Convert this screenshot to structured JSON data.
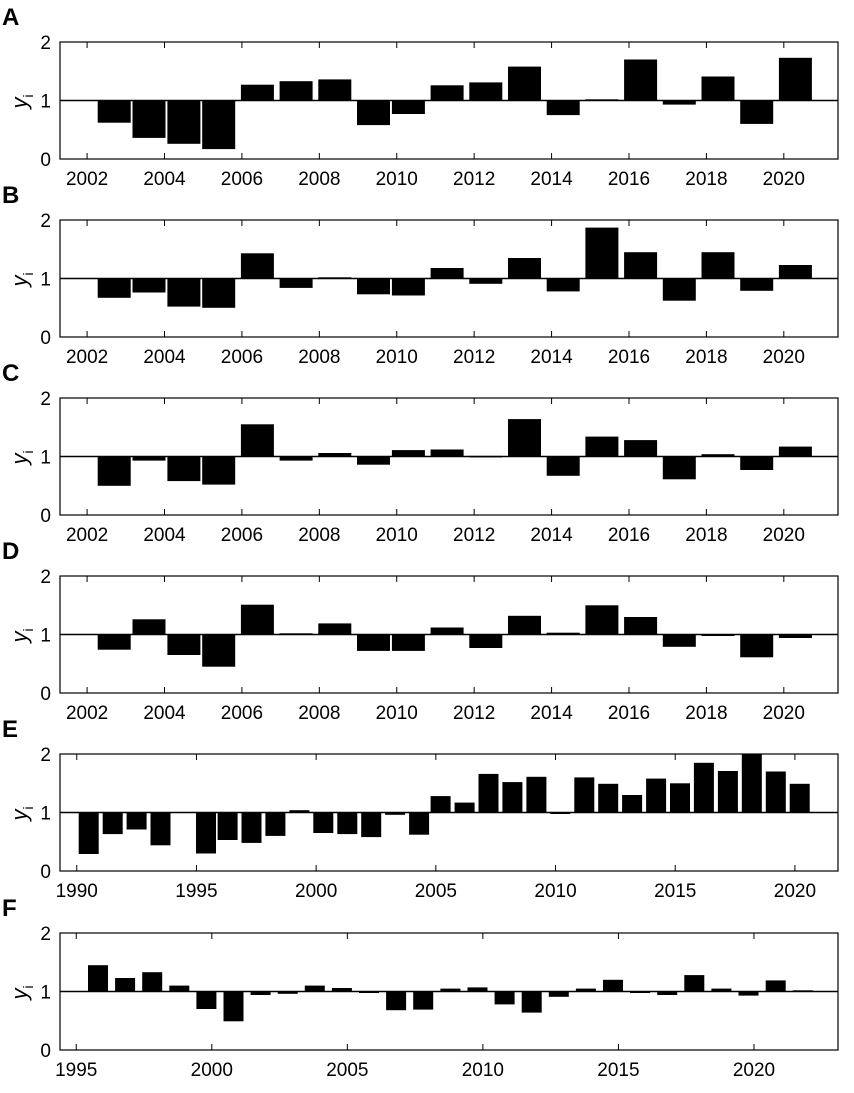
{
  "chart_data": [
    {
      "type": "bar",
      "panel_label": "A",
      "ylabel": "y",
      "ylabel_subscript": "i",
      "baseline": 1,
      "ylim": [
        0,
        2
      ],
      "yticks": [
        "0",
        "1",
        "2"
      ],
      "xlim": [
        2001.3,
        2021.4
      ],
      "xticks": [
        "2002",
        "2004",
        "2006",
        "2008",
        "2010",
        "2012",
        "2014",
        "2016",
        "2018",
        "2020"
      ],
      "x": [
        2002.7,
        2003.6,
        2004.5,
        2005.4,
        2006.4,
        2007.4,
        2008.4,
        2009.4,
        2010.3,
        2011.3,
        2012.3,
        2013.3,
        2014.3,
        2015.3,
        2016.3,
        2017.3,
        2018.3,
        2019.3,
        2020.3
      ],
      "values": [
        0.62,
        0.36,
        0.26,
        0.17,
        1.27,
        1.33,
        1.36,
        0.58,
        0.77,
        1.26,
        1.31,
        1.58,
        0.75,
        1.02,
        1.7,
        0.93,
        1.41,
        0.6,
        1.73
      ]
    },
    {
      "type": "bar",
      "panel_label": "B",
      "ylabel": "y",
      "ylabel_subscript": "i",
      "baseline": 1,
      "ylim": [
        0,
        2
      ],
      "yticks": [
        "0",
        "1",
        "2"
      ],
      "xlim": [
        2001.3,
        2021.4
      ],
      "xticks": [
        "2002",
        "2004",
        "2006",
        "2008",
        "2010",
        "2012",
        "2014",
        "2016",
        "2018",
        "2020"
      ],
      "x": [
        2002.7,
        2003.6,
        2004.5,
        2005.4,
        2006.4,
        2007.4,
        2008.4,
        2009.4,
        2010.3,
        2011.3,
        2012.3,
        2013.3,
        2014.3,
        2015.3,
        2016.3,
        2017.3,
        2018.3,
        2019.3,
        2020.3
      ],
      "values": [
        0.67,
        0.76,
        0.52,
        0.5,
        1.43,
        0.84,
        1.02,
        0.73,
        0.71,
        1.18,
        0.91,
        1.35,
        0.78,
        1.87,
        1.45,
        0.62,
        1.45,
        0.79,
        1.23
      ]
    },
    {
      "type": "bar",
      "panel_label": "C",
      "ylabel": "y",
      "ylabel_subscript": "i",
      "baseline": 1,
      "ylim": [
        0,
        2
      ],
      "yticks": [
        "0",
        "1",
        "2"
      ],
      "xlim": [
        2001.3,
        2021.4
      ],
      "xticks": [
        "2002",
        "2004",
        "2006",
        "2008",
        "2010",
        "2012",
        "2014",
        "2016",
        "2018",
        "2020"
      ],
      "x": [
        2002.7,
        2003.6,
        2004.5,
        2005.4,
        2006.4,
        2007.4,
        2008.4,
        2009.4,
        2010.3,
        2011.3,
        2012.3,
        2013.3,
        2014.3,
        2015.3,
        2016.3,
        2017.3,
        2018.3,
        2019.3,
        2020.3
      ],
      "values": [
        0.5,
        0.93,
        0.58,
        0.52,
        1.55,
        0.93,
        1.06,
        0.86,
        1.11,
        1.12,
        1.01,
        1.64,
        0.67,
        1.34,
        1.28,
        0.61,
        1.04,
        0.77,
        1.17
      ]
    },
    {
      "type": "bar",
      "panel_label": "D",
      "ylabel": "y",
      "ylabel_subscript": "i",
      "baseline": 1,
      "ylim": [
        0,
        2
      ],
      "yticks": [
        "0",
        "1",
        "2"
      ],
      "xlim": [
        2001.3,
        2021.4
      ],
      "xticks": [
        "2002",
        "2004",
        "2006",
        "2008",
        "2010",
        "2012",
        "2014",
        "2016",
        "2018",
        "2020"
      ],
      "x": [
        2002.7,
        2003.6,
        2004.5,
        2005.4,
        2006.4,
        2007.4,
        2008.4,
        2009.4,
        2010.3,
        2011.3,
        2012.3,
        2013.3,
        2014.3,
        2015.3,
        2016.3,
        2017.3,
        2018.3,
        2019.3,
        2020.3
      ],
      "values": [
        0.74,
        1.26,
        0.65,
        0.45,
        1.51,
        1.02,
        1.19,
        0.72,
        0.72,
        1.12,
        0.77,
        1.32,
        1.03,
        1.5,
        1.3,
        0.79,
        0.98,
        0.61,
        0.94
      ]
    },
    {
      "type": "bar",
      "panel_label": "E",
      "ylabel": "y",
      "ylabel_subscript": "i",
      "baseline": 1,
      "ylim": [
        0,
        2
      ],
      "yticks": [
        "0",
        "1",
        "2"
      ],
      "xlim": [
        1989.3,
        2021.8
      ],
      "xticks": [
        "1990",
        "1995",
        "2000",
        "2005",
        "2010",
        "2015",
        "2020"
      ],
      "x": [
        1990.5,
        1991.5,
        1992.5,
        1993.5,
        1995.4,
        1996.3,
        1997.3,
        1998.3,
        1999.3,
        2000.3,
        2001.3,
        2002.3,
        2003.3,
        2004.3,
        2005.2,
        2006.2,
        2007.2,
        2008.2,
        2009.2,
        2010.2,
        2011.2,
        2012.2,
        2013.2,
        2014.2,
        2015.2,
        2016.2,
        2017.2,
        2018.2,
        2019.2,
        2020.2
      ],
      "values": [
        0.29,
        0.63,
        0.71,
        0.44,
        0.3,
        0.53,
        0.48,
        0.6,
        1.04,
        0.65,
        0.63,
        0.58,
        0.96,
        0.62,
        1.28,
        1.17,
        1.66,
        1.52,
        1.61,
        0.98,
        1.6,
        1.49,
        1.3,
        1.58,
        1.5,
        1.85,
        1.71,
        2.0,
        1.7,
        1.49
      ]
    },
    {
      "type": "bar",
      "panel_label": "F",
      "ylabel": "y",
      "ylabel_subscript": "i",
      "baseline": 1,
      "ylim": [
        0,
        2
      ],
      "yticks": [
        "0",
        "1",
        "2"
      ],
      "xlim": [
        1994.4,
        2023.1
      ],
      "xticks": [
        "1995",
        "2000",
        "2005",
        "2010",
        "2015",
        "2020"
      ],
      "x": [
        1995.8,
        1996.8,
        1997.8,
        1998.8,
        1999.8,
        2000.8,
        2001.8,
        2002.8,
        2003.8,
        2004.8,
        2005.8,
        2006.8,
        2007.8,
        2008.8,
        2009.8,
        2010.8,
        2011.8,
        2012.8,
        2013.8,
        2014.8,
        2015.8,
        2016.8,
        2017.8,
        2018.8,
        2019.8,
        2020.8,
        2021.8
      ],
      "values": [
        1.45,
        1.23,
        1.33,
        1.1,
        0.7,
        0.49,
        0.94,
        0.96,
        1.1,
        1.06,
        0.98,
        0.68,
        0.69,
        1.05,
        1.07,
        0.78,
        0.64,
        0.91,
        1.05,
        1.2,
        0.98,
        0.94,
        1.28,
        1.05,
        0.93,
        1.19,
        1.02
      ]
    }
  ]
}
